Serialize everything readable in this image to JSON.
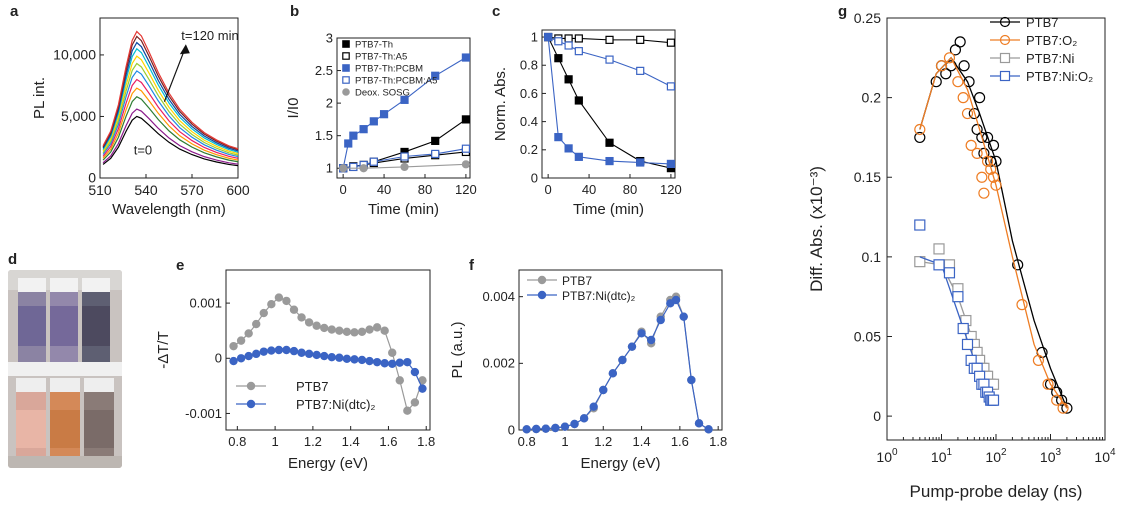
{
  "panels": {
    "a": {
      "letter": "a",
      "xlabel": "Wavelength (nm)",
      "ylabel": "PL int.",
      "xticks": [
        "510",
        "540",
        "570",
        "600"
      ],
      "yticks": [
        "0",
        "5,000",
        "10,000"
      ],
      "annotations": [
        "t=0",
        "t=120 min"
      ]
    },
    "b": {
      "letter": "b",
      "xlabel": "Time (min)",
      "ylabel": "I/I0",
      "xticks": [
        "0",
        "40",
        "80",
        "120"
      ],
      "yticks": [
        "1",
        "1.5",
        "2",
        "2.5",
        "3"
      ]
    },
    "c": {
      "letter": "c",
      "xlabel": "Time (min)",
      "ylabel": "Norm. Abs.",
      "xticks": [
        "0",
        "40",
        "80",
        "120"
      ],
      "yticks": [
        "0",
        "0.2",
        "0.4",
        "0.6",
        "0.8",
        "1"
      ]
    },
    "d": {
      "letter": "d"
    },
    "e": {
      "letter": "e",
      "xlabel": "Energy (eV)",
      "ylabel": "-ΔT/T",
      "xticks": [
        "0.8",
        "1",
        "1.2",
        "1.4",
        "1.6",
        "1.8"
      ],
      "yticks": [
        "-0.001",
        "0",
        "0.001"
      ]
    },
    "f": {
      "letter": "f",
      "xlabel": "Energy (eV)",
      "ylabel": "PL (a.u.)",
      "xticks": [
        "0.8",
        "1",
        "1.2",
        "1.4",
        "1.6",
        "1.8"
      ],
      "yticks": [
        "0",
        "0.002",
        "0.004"
      ]
    },
    "g": {
      "letter": "g",
      "xlabel": "Pump-probe delay (ns)",
      "ylabel": "Diff. Abs. (x10⁻³)",
      "yticks": [
        "0",
        "0.05",
        "0.1",
        "0.15",
        "0.2",
        "0.25"
      ]
    }
  },
  "chart_data": [
    {
      "panel": "a",
      "type": "line",
      "xlabel": "Wavelength (nm)",
      "ylabel": "PL int.",
      "xlim": [
        510,
        600
      ],
      "ylim": [
        0,
        13000
      ],
      "x": [
        512,
        517,
        522,
        527,
        531,
        534,
        537,
        542,
        548,
        555,
        562,
        570,
        578,
        586,
        594,
        600
      ],
      "profile": [
        0.22,
        0.32,
        0.5,
        0.76,
        0.94,
        1.0,
        0.97,
        0.86,
        0.72,
        0.58,
        0.47,
        0.38,
        0.31,
        0.26,
        0.22,
        0.2
      ],
      "series": [
        {
          "color": "#000000",
          "peak": 5000
        },
        {
          "color": "#8b1a8b",
          "peak": 5600
        },
        {
          "color": "#2e7d32",
          "peak": 6600
        },
        {
          "color": "#ff9800",
          "peak": 7300
        },
        {
          "color": "#e91e63",
          "peak": 8000
        },
        {
          "color": "#1e88e5",
          "peak": 8700
        },
        {
          "color": "#9acd32",
          "peak": 9300
        },
        {
          "color": "#ffd400",
          "peak": 9900
        },
        {
          "color": "#00bcd4",
          "peak": 10500
        },
        {
          "color": "#0d47a1",
          "peak": 11000
        },
        {
          "color": "#7a1f1f",
          "peak": 11500
        },
        {
          "color": "#e53935",
          "peak": 11900
        }
      ]
    },
    {
      "panel": "b",
      "type": "line",
      "xlabel": "Time (min)",
      "ylabel": "I/I0",
      "xlim": [
        -6,
        124
      ],
      "ylim": [
        0.85,
        3
      ],
      "legend": "top-left",
      "series": [
        {
          "name": "PTB7-Th",
          "color": "#000000",
          "marker": "square-filled",
          "x": [
            0,
            10,
            20,
            30,
            60,
            90,
            120
          ],
          "y": [
            1.0,
            1.03,
            1.05,
            1.1,
            1.25,
            1.42,
            1.75
          ]
        },
        {
          "name": "PTB7-Th:A5",
          "color": "#000000",
          "marker": "square-open",
          "x": [
            0,
            10,
            20,
            30,
            60,
            90,
            120
          ],
          "y": [
            1.0,
            1.02,
            1.05,
            1.08,
            1.15,
            1.2,
            1.25
          ]
        },
        {
          "name": "PTB7-Th:PCBM",
          "color": "#3b64c4",
          "marker": "square-filled",
          "x": [
            0,
            5,
            10,
            20,
            30,
            40,
            60,
            90,
            120
          ],
          "y": [
            1.0,
            1.38,
            1.5,
            1.6,
            1.72,
            1.83,
            2.05,
            2.42,
            2.7
          ]
        },
        {
          "name": "PTB7-Th:PCBM:A5",
          "color": "#3b64c4",
          "marker": "square-open",
          "x": [
            0,
            10,
            20,
            30,
            60,
            90,
            120
          ],
          "y": [
            1.0,
            1.02,
            1.05,
            1.1,
            1.18,
            1.22,
            1.3
          ]
        },
        {
          "name": "Deox. SOSG",
          "color": "#9a9a9a",
          "marker": "circle-filled",
          "x": [
            0,
            20,
            60,
            120
          ],
          "y": [
            1.0,
            1.0,
            1.02,
            1.06
          ]
        }
      ]
    },
    {
      "panel": "c",
      "type": "line",
      "xlabel": "Time (min)",
      "ylabel": "Norm. Abs.",
      "xlim": [
        -6,
        124
      ],
      "ylim": [
        0,
        1.05
      ],
      "series": [
        {
          "color": "#000000",
          "marker": "square-open",
          "x": [
            0,
            10,
            20,
            30,
            60,
            90,
            120
          ],
          "y": [
            1.0,
            0.99,
            0.99,
            0.99,
            0.98,
            0.98,
            0.96
          ]
        },
        {
          "color": "#3b64c4",
          "marker": "square-open",
          "x": [
            0,
            10,
            20,
            30,
            60,
            90,
            120
          ],
          "y": [
            1.0,
            0.97,
            0.94,
            0.9,
            0.84,
            0.76,
            0.65
          ]
        },
        {
          "color": "#000000",
          "marker": "square-filled",
          "x": [
            0,
            10,
            20,
            30,
            60,
            90,
            120
          ],
          "y": [
            1.0,
            0.85,
            0.7,
            0.55,
            0.25,
            0.12,
            0.07
          ]
        },
        {
          "color": "#3b64c4",
          "marker": "square-filled",
          "x": [
            0,
            10,
            20,
            30,
            60,
            90,
            120
          ],
          "y": [
            1.0,
            0.29,
            0.21,
            0.15,
            0.12,
            0.11,
            0.1
          ]
        }
      ]
    },
    {
      "panel": "e",
      "type": "line",
      "xlabel": "Energy (eV)",
      "ylabel": "-ΔT/T",
      "xlim": [
        0.74,
        1.82
      ],
      "ylim": [
        -0.0013,
        0.0016
      ],
      "legend": "bottom-left",
      "series": [
        {
          "name": "PTB7",
          "color": "#9a9a9a",
          "marker": "circle-filled",
          "x": [
            0.78,
            0.82,
            0.86,
            0.9,
            0.94,
            0.98,
            1.02,
            1.06,
            1.1,
            1.14,
            1.18,
            1.22,
            1.26,
            1.3,
            1.34,
            1.38,
            1.42,
            1.46,
            1.5,
            1.54,
            1.58,
            1.62,
            1.66,
            1.7,
            1.74,
            1.78
          ],
          "y": [
            0.00022,
            0.00032,
            0.00045,
            0.00062,
            0.00082,
            0.00098,
            0.0011,
            0.00104,
            0.00088,
            0.00074,
            0.00065,
            0.00059,
            0.00055,
            0.00052,
            0.0005,
            0.00048,
            0.00047,
            0.00048,
            0.00052,
            0.00056,
            0.0005,
            0.0001,
            -0.0004,
            -0.00095,
            -0.0008,
            -0.0004
          ]
        },
        {
          "name": "PTB7:Ni(dtc)₂",
          "color": "#3b64c4",
          "marker": "circle-filled",
          "x": [
            0.78,
            0.82,
            0.86,
            0.9,
            0.94,
            0.98,
            1.02,
            1.06,
            1.1,
            1.14,
            1.18,
            1.22,
            1.26,
            1.3,
            1.34,
            1.38,
            1.42,
            1.46,
            1.5,
            1.54,
            1.58,
            1.62,
            1.66,
            1.7,
            1.74,
            1.78
          ],
          "y": [
            -5e-05,
            0.0,
            4e-05,
            8e-05,
            0.00012,
            0.00014,
            0.00015,
            0.00015,
            0.00013,
            0.0001,
            8e-05,
            6e-05,
            4e-05,
            2e-05,
            1e-05,
            -1e-05,
            -2e-05,
            -3e-05,
            -5e-05,
            -7e-05,
            -9e-05,
            -0.0001,
            -8e-05,
            -7e-05,
            -0.00025,
            -0.00055
          ]
        }
      ]
    },
    {
      "panel": "f",
      "type": "line",
      "xlabel": "Energy (eV)",
      "ylabel": "PL (a.u.)",
      "xlim": [
        0.76,
        1.82
      ],
      "ylim": [
        0,
        0.0048
      ],
      "legend": "top-left",
      "series": [
        {
          "name": "PTB7",
          "color": "#9a9a9a",
          "marker": "circle-filled",
          "x": [
            0.8,
            0.85,
            0.9,
            0.95,
            1.0,
            1.05,
            1.1,
            1.15,
            1.2,
            1.25,
            1.3,
            1.35,
            1.4,
            1.45,
            1.5,
            1.55,
            1.58,
            1.62,
            1.66,
            1.7,
            1.75
          ],
          "y": [
            2e-05,
            3e-05,
            4e-05,
            6e-05,
            0.0001,
            0.00018,
            0.00035,
            0.00065,
            0.0012,
            0.0017,
            0.0021,
            0.0025,
            0.00295,
            0.0026,
            0.0034,
            0.0039,
            0.004,
            0.0034,
            0.0015,
            0.0002,
            2e-05
          ]
        },
        {
          "name": "PTB7:Ni(dtc)₂",
          "color": "#3b64c4",
          "marker": "circle-filled",
          "x": [
            0.8,
            0.85,
            0.9,
            0.95,
            1.0,
            1.05,
            1.1,
            1.15,
            1.2,
            1.25,
            1.3,
            1.35,
            1.4,
            1.45,
            1.5,
            1.55,
            1.58,
            1.62,
            1.66,
            1.7,
            1.75
          ],
          "y": [
            2e-05,
            3e-05,
            4e-05,
            6e-05,
            0.0001,
            0.00018,
            0.00035,
            0.0007,
            0.0012,
            0.0017,
            0.0021,
            0.0025,
            0.0029,
            0.0027,
            0.0033,
            0.0038,
            0.0039,
            0.0034,
            0.0015,
            0.0002,
            2e-05
          ]
        }
      ]
    },
    {
      "panel": "g",
      "type": "scatter",
      "xlabel": "Pump-probe delay (ns)",
      "ylabel": "Diff. Abs. (x10⁻³)",
      "xscale": "log",
      "xlim": [
        1,
        10000
      ],
      "ylim": [
        -0.015,
        0.25
      ],
      "legend": "top-right",
      "series": [
        {
          "name": "PTB7",
          "color": "#000000",
          "marker": "circle-open",
          "x": [
            4,
            8,
            10,
            12,
            15,
            18,
            22,
            26,
            32,
            40,
            45,
            50,
            55,
            60,
            70,
            80,
            90,
            100,
            250,
            700,
            1000,
            1300,
            1600,
            2000
          ],
          "y": [
            0.175,
            0.21,
            0.22,
            0.215,
            0.22,
            0.23,
            0.235,
            0.22,
            0.21,
            0.19,
            0.18,
            0.2,
            0.175,
            0.165,
            0.175,
            0.16,
            0.17,
            0.16,
            0.095,
            0.04,
            0.02,
            0.015,
            0.01,
            0.005
          ],
          "fit_x": [
            4,
            8,
            15,
            30,
            50,
            100,
            200,
            500,
            1000,
            2000
          ],
          "fit_y": [
            0.18,
            0.215,
            0.225,
            0.21,
            0.19,
            0.16,
            0.11,
            0.06,
            0.03,
            0.005
          ]
        },
        {
          "name": "PTB7:O₂",
          "color": "#ee7d24",
          "marker": "circle-open",
          "x": [
            4,
            10,
            14,
            20,
            25,
            30,
            35,
            45,
            55,
            60,
            70,
            80,
            90,
            100,
            300,
            600,
            900,
            1300,
            1700
          ],
          "y": [
            0.18,
            0.22,
            0.225,
            0.21,
            0.2,
            0.19,
            0.17,
            0.165,
            0.15,
            0.14,
            0.16,
            0.155,
            0.15,
            0.145,
            0.07,
            0.035,
            0.02,
            0.01,
            0.005
          ],
          "fit_x": [
            4,
            8,
            15,
            30,
            50,
            100,
            200,
            500,
            1000,
            2000
          ],
          "fit_y": [
            0.18,
            0.215,
            0.225,
            0.205,
            0.18,
            0.145,
            0.1,
            0.045,
            0.02,
            0.005
          ]
        },
        {
          "name": "PTB7:Ni",
          "color": "#9a9a9a",
          "marker": "square-open",
          "x": [
            4,
            9,
            14,
            20,
            28,
            35,
            40,
            45,
            50,
            55,
            60,
            65,
            70,
            75,
            80,
            90
          ],
          "y": [
            0.097,
            0.105,
            0.095,
            0.08,
            0.06,
            0.05,
            0.045,
            0.04,
            0.035,
            0.03,
            0.03,
            0.025,
            0.025,
            0.02,
            0.02,
            0.02
          ],
          "fit_x": [
            4,
            10,
            20,
            40,
            60,
            90
          ],
          "fit_y": [
            0.097,
            0.095,
            0.075,
            0.045,
            0.03,
            0.02
          ]
        },
        {
          "name": "PTB7:Ni:O₂",
          "color": "#3b64c4",
          "marker": "square-open",
          "x": [
            4,
            9,
            14,
            20,
            25,
            30,
            35,
            40,
            45,
            50,
            55,
            60,
            65,
            70,
            75,
            80,
            85,
            90
          ],
          "y": [
            0.12,
            0.095,
            0.09,
            0.075,
            0.055,
            0.045,
            0.035,
            0.03,
            0.03,
            0.025,
            0.02,
            0.02,
            0.015,
            0.015,
            0.012,
            0.01,
            0.01,
            0.01
          ],
          "fit_x": [
            4,
            10,
            20,
            40,
            60,
            90
          ],
          "fit_y": [
            0.1,
            0.095,
            0.065,
            0.035,
            0.02,
            0.012
          ]
        }
      ]
    }
  ]
}
